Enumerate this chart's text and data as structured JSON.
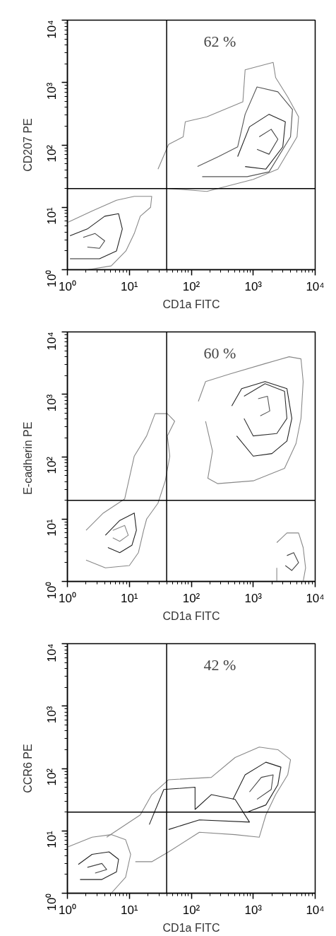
{
  "chart_data": [
    {
      "type": "line",
      "xlabel": "CD1a FITC",
      "ylabel": "CD207 PE",
      "log": "xy",
      "grid": false,
      "marker": "none",
      "line_style": "solid",
      "xlim": [
        1,
        10000
      ],
      "ylim": [
        1,
        10000
      ],
      "xticks": [
        {
          "value": 1,
          "label": "10⁰"
        },
        {
          "value": 10,
          "label": "10¹"
        },
        {
          "value": 100,
          "label": "10²"
        },
        {
          "value": 1000,
          "label": "10³"
        },
        {
          "value": 10000,
          "label": "10⁴"
        }
      ],
      "yticks": [
        {
          "value": 1,
          "label": "10⁰"
        },
        {
          "value": 10,
          "label": "10¹"
        },
        {
          "value": 100,
          "label": "10²"
        },
        {
          "value": 1000,
          "label": "10³"
        },
        {
          "value": 10000,
          "label": "10⁴"
        }
      ],
      "ref_lines": [
        {
          "axis": "x",
          "value": 40,
          "color": "#000000"
        },
        {
          "axis": "y",
          "value": 20,
          "color": "#000000"
        }
      ],
      "annotations": [
        "62 %"
      ],
      "series": [
        {
          "color": "#888888",
          "x": [
            1,
            2.5,
            6.2,
            12,
            23,
            22,
            15,
            12,
            8.8,
            5.1,
            2.1,
            1
          ],
          "values": [
            5.7,
            8.7,
            13,
            15,
            15,
            10,
            7.2,
            3.8,
            2.0,
            1.15,
            1,
            1
          ]
        },
        {
          "color": "#222222",
          "x": [
            1.1,
            2.1,
            4.0,
            6.7,
            7.7,
            6.2,
            3.3,
            1.1
          ],
          "values": [
            3.5,
            4.5,
            7.2,
            7.9,
            4.5,
            2.0,
            1.5,
            1.5
          ]
        },
        {
          "color": "#444444",
          "x": [
            1.8,
            2.8,
            4.0,
            3.3,
            2.1
          ],
          "values": [
            3.3,
            3.8,
            2.9,
            2.2,
            2.3
          ]
        },
        {
          "color": "#888888",
          "x": [
            29,
            43,
            74,
            80,
            178,
            680,
            740,
            2100,
            2300,
            3600,
            5400,
            5100,
            2500,
            1000,
            178,
            43
          ],
          "values": [
            41,
            102,
            135,
            235,
            282,
            490,
            1600,
            2100,
            1200,
            590,
            282,
            135,
            41,
            28,
            18,
            20
          ]
        },
        {
          "color": "#555555",
          "x": [
            126,
            275,
            560,
            740,
            1150,
            2500,
            4300,
            4000,
            1800,
            800,
            150
          ],
          "values": [
            45,
            65,
            93,
            310,
            850,
            710,
            370,
            135,
            37,
            31,
            31
          ]
        },
        {
          "color": "#222222",
          "x": [
            560,
            870,
            1800,
            3300,
            3000,
            1600,
            740
          ],
          "values": [
            65,
            195,
            310,
            235,
            93,
            41,
            45
          ]
        },
        {
          "color": "#444444",
          "x": [
            1250,
            1950,
            2500,
            1800,
            1150
          ],
          "values": [
            135,
            178,
            123,
            71,
            85
          ]
        }
      ]
    },
    {
      "type": "line",
      "xlabel": "CD1a FITC",
      "ylabel": "E-cadherin  PE",
      "log": "xy",
      "grid": false,
      "marker": "none",
      "line_style": "solid",
      "xlim": [
        1,
        10000
      ],
      "ylim": [
        1,
        10000
      ],
      "xticks": [
        {
          "value": 1,
          "label": "10⁰"
        },
        {
          "value": 10,
          "label": "10¹"
        },
        {
          "value": 100,
          "label": "10²"
        },
        {
          "value": 1000,
          "label": "10³"
        },
        {
          "value": 10000,
          "label": "10⁴"
        }
      ],
      "yticks": [
        {
          "value": 1,
          "label": "10⁰"
        },
        {
          "value": 10,
          "label": "10¹"
        },
        {
          "value": 100,
          "label": "10²"
        },
        {
          "value": 1000,
          "label": "10³"
        },
        {
          "value": 10000,
          "label": "10⁴"
        }
      ],
      "ref_lines": [
        {
          "axis": "x",
          "value": 40,
          "color": "#000000"
        },
        {
          "axis": "y",
          "value": 20,
          "color": "#000000"
        }
      ],
      "annotations": [
        "60 %"
      ],
      "series": [
        {
          "color": "#888888",
          "x": [
            2.0,
            3.8,
            8.4,
            12,
            19,
            26,
            41,
            54,
            41,
            45,
            38,
            29,
            19,
            17,
            14,
            10,
            4.1,
            2.0
          ],
          "values": [
            6.6,
            12.5,
            21,
            102,
            215,
            490,
            490,
            370,
            215,
            102,
            41,
            18,
            10,
            6.6,
            2.9,
            1.8,
            1.65,
            2.2
          ]
        },
        {
          "color": "#222222",
          "x": [
            4.1,
            7.0,
            12,
            13,
            11,
            7,
            4.5
          ],
          "values": [
            5.5,
            9.5,
            12.5,
            6.6,
            3.8,
            2.9,
            3.5
          ]
        },
        {
          "color": "#888888",
          "x": [
            5.4,
            8.4,
            9.6,
            7.0,
            5.4
          ],
          "values": [
            6.6,
            7.9,
            5.5,
            4.4,
            5.0
          ]
        },
        {
          "color": "#888888",
          "x": [
            130,
            170,
            410,
            1550,
            3800,
            5900,
            6400,
            5900,
            4900,
            3200,
            1000,
            265,
            185,
            220,
            170
          ],
          "values": [
            770,
            1600,
            2100,
            3100,
            4000,
            3700,
            1600,
            410,
            162,
            65,
            41,
            37,
            45,
            123,
            370
          ]
        },
        {
          "color": "#222222",
          "x": [
            450,
            650,
            1550,
            3500,
            4200,
            3500,
            2000,
            1000,
            540
          ],
          "values": [
            650,
            1230,
            1600,
            1230,
            410,
            178,
            112,
            102,
            215
          ]
        },
        {
          "color": "#333333",
          "x": [
            710,
            1550,
            3200,
            3500,
            2400,
            1000,
            710
          ],
          "values": [
            930,
            1480,
            1120,
            410,
            235,
            215,
            410
          ]
        },
        {
          "color": "#555555",
          "x": [
            1200,
            1700,
            1850,
            1300
          ],
          "values": [
            850,
            930,
            540,
            450
          ]
        },
        {
          "color": "#888888",
          "x": [
            2400,
            3500,
            5400,
            6400,
            7000,
            6400,
            2400,
            2400
          ],
          "values": [
            4.2,
            6.0,
            6.0,
            3.5,
            1.65,
            1,
            1,
            1.65
          ]
        },
        {
          "color": "#444444",
          "x": [
            3500,
            4500,
            5400,
            4200,
            3300
          ],
          "values": [
            2.6,
            2.9,
            2.0,
            1.5,
            1.8
          ]
        }
      ]
    },
    {
      "type": "line",
      "xlabel": "CD1a FITC",
      "ylabel": "CCR6 PE",
      "log": "xy",
      "grid": false,
      "marker": "none",
      "line_style": "solid",
      "xlim": [
        1,
        10000
      ],
      "ylim": [
        1,
        10000
      ],
      "xticks": [
        {
          "value": 1,
          "label": "10⁰"
        },
        {
          "value": 10,
          "label": "10¹"
        },
        {
          "value": 100,
          "label": "10²"
        },
        {
          "value": 1000,
          "label": "10³"
        },
        {
          "value": 10000,
          "label": "10⁴"
        }
      ],
      "yticks": [
        {
          "value": 1,
          "label": "10⁰"
        },
        {
          "value": 10,
          "label": "10¹"
        },
        {
          "value": 100,
          "label": "10²"
        },
        {
          "value": 1000,
          "label": "10³"
        },
        {
          "value": 10000,
          "label": "10⁴"
        }
      ],
      "ref_lines": [
        {
          "axis": "x",
          "value": 40,
          "color": "#000000"
        },
        {
          "axis": "y",
          "value": 20,
          "color": "#000000"
        }
      ],
      "annotations": [
        "42 %"
      ],
      "series": [
        {
          "color": "#888888",
          "x": [
            1.0,
            2.5,
            5.1,
            8.7,
            10.5,
            8.7,
            5.1,
            1.0
          ],
          "values": [
            5.5,
            7.9,
            8.7,
            7.2,
            4.2,
            1.8,
            1.0,
            1.0
          ]
        },
        {
          "color": "#222222",
          "x": [
            1.5,
            2.5,
            4.7,
            6.7,
            6.2,
            3.6,
            1.6
          ],
          "values": [
            2.9,
            4.2,
            4.6,
            3.5,
            2.2,
            1.66,
            1.66
          ]
        },
        {
          "color": "#444444",
          "x": [
            2.1,
            3.6,
            4.3,
            2.8
          ],
          "values": [
            2.6,
            3.0,
            2.4,
            2.1
          ]
        },
        {
          "color": "#888888",
          "x": [
            4.3,
            15,
            23,
            43,
            210,
            510,
            1250,
            2500,
            4000,
            3600,
            2300,
            1600,
            1250,
            510,
            135,
            43,
            23,
            12.5
          ],
          "values": [
            7.9,
            18,
            38,
            66,
            72,
            150,
            220,
            200,
            138,
            79,
            38,
            18,
            7.9,
            8.7,
            9.5,
            4.6,
            3.2,
            3.2
          ]
        },
        {
          "color": "#222222",
          "x": [
            21,
            36,
            115,
            115,
            210,
            510,
            870,
            135,
            43
          ],
          "values": [
            12.6,
            46,
            50,
            22,
            38,
            32,
            13.8,
            15,
            10.5
          ]
        },
        {
          "color": "#222222",
          "x": [
            470,
            740,
            1600,
            2800,
            2500,
            1600,
            800
          ],
          "values": [
            32,
            79,
            126,
            105,
            55,
            26,
            20
          ]
        },
        {
          "color": "#444444",
          "x": [
            870,
            1350,
            2100,
            1950,
            1150
          ],
          "values": [
            42,
            72,
            79,
            46,
            32
          ]
        }
      ]
    }
  ]
}
